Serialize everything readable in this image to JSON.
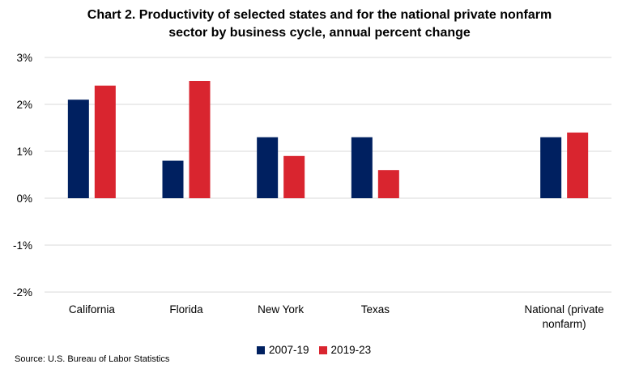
{
  "chart_data": {
    "type": "bar",
    "title_lines": [
      "Chart 2. Productivity of selected states and for the national private nonfarm",
      "sector by business cycle, annual percent change"
    ],
    "categories": [
      "California",
      "Florida",
      "New York",
      "Texas",
      "",
      "National (private nonfarm)"
    ],
    "category_label_lines": [
      [
        "California"
      ],
      [
        "Florida"
      ],
      [
        "New York"
      ],
      [
        "Texas"
      ],
      [],
      [
        "National (private",
        "nonfarm)"
      ]
    ],
    "series": [
      {
        "name": "2007-19",
        "color": "#002060",
        "values": [
          2.1,
          0.8,
          1.3,
          1.3,
          null,
          1.3
        ]
      },
      {
        "name": "2019-23",
        "color": "#d9252f",
        "values": [
          2.4,
          2.5,
          0.9,
          0.6,
          null,
          1.4
        ]
      }
    ],
    "ylim": [
      -2,
      3
    ],
    "yticks": [
      -2,
      -1,
      0,
      1,
      2,
      3
    ],
    "ytick_labels": [
      "-2%",
      "-1%",
      "0%",
      "1%",
      "2%",
      "3%"
    ],
    "xlabel": "",
    "ylabel": "",
    "grid": true,
    "legend_position": "bottom-center",
    "source": "Source: U.S. Bureau of Labor Statistics"
  }
}
